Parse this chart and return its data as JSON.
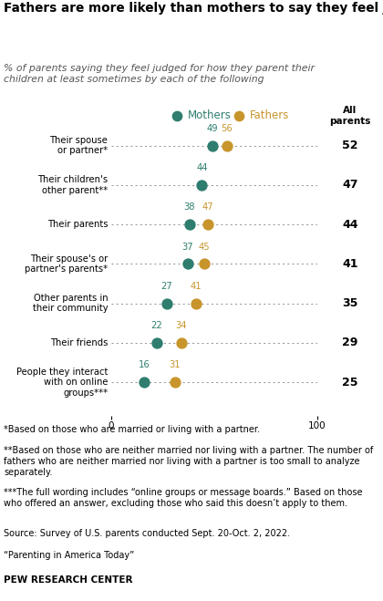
{
  "title": "Fathers are more likely than mothers to say they feel judged by their spouse or partner for how they parent",
  "subtitle": "% of parents saying they feel judged for how they parent their\nchildren at least sometimes by each of the following",
  "categories": [
    "Their spouse\nor partner*",
    "Their children's\nother parent**",
    "Their parents",
    "Their spouse's or\npartner's parents*",
    "Other parents in\ntheir community",
    "Their friends",
    "People they interact\nwith on online\ngroups***"
  ],
  "mothers": [
    49,
    44,
    38,
    37,
    27,
    22,
    16
  ],
  "fathers": [
    56,
    null,
    47,
    45,
    41,
    34,
    31
  ],
  "all_parents": [
    52,
    47,
    44,
    41,
    35,
    29,
    25
  ],
  "mothers_color": "#2e7d6e",
  "fathers_color": "#c8952c",
  "x_min": 0,
  "x_max": 100,
  "footnote1": "*Based on those who are married or living with a partner.",
  "footnote2": "**Based on those who are neither married nor living with a partner. The number of fathers who are neither married nor living with a partner is too small to analyze separately.",
  "footnote3": "***The full wording includes “online groups or message boards.” Based on those who offered an answer, excluding those who said this doesn’t apply to them.",
  "footnote4": "Source: Survey of U.S. parents conducted Sept. 20-Oct. 2, 2022.",
  "footnote5": "“Parenting in America Today”",
  "footer": "PEW RESEARCH CENTER",
  "right_panel_bg": "#eaeadb",
  "main_bg": "#ffffff"
}
